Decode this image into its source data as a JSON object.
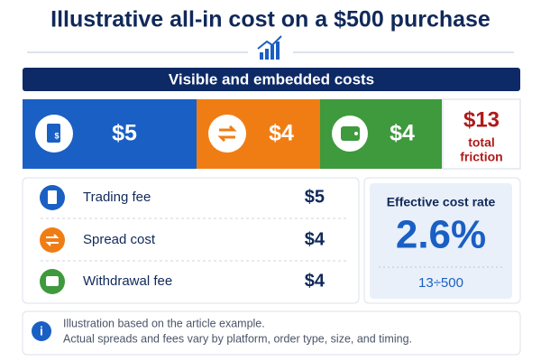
{
  "header": {
    "title": "Illustrative all-in cost on a $500 purchase"
  },
  "banner": {
    "title": "Visible and embedded costs"
  },
  "tiles": [
    {
      "amount": "$5"
    },
    {
      "amount": "$4"
    },
    {
      "amount": "$4"
    }
  ],
  "total": {
    "amount": "$13",
    "label_line1": "total",
    "label_line2": "friction"
  },
  "breakdown": [
    {
      "label": "Trading fee",
      "amount": "$5"
    },
    {
      "label": "Spread cost",
      "amount": "$4"
    },
    {
      "label": "Withdrawal fee",
      "amount": "$4"
    }
  ],
  "rate": {
    "label": "Effective cost rate",
    "value": "2.6%",
    "formula": "13÷500"
  },
  "note": {
    "line1": "Illustration based on the article example.",
    "line2": "Actual spreads and fees vary by platform, order type, size, and timing."
  }
}
